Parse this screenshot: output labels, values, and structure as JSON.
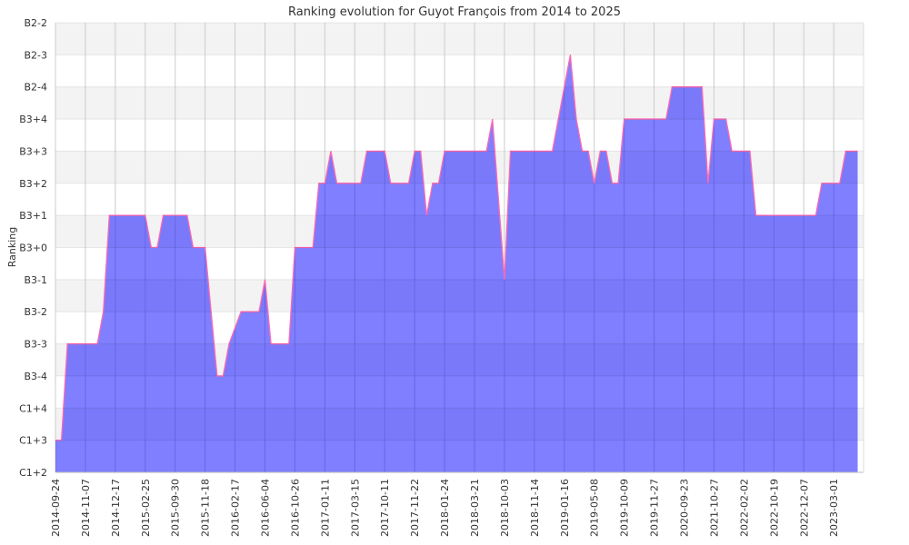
{
  "chart_data": {
    "type": "area",
    "title": "Ranking evolution for Guyot François from 2014 to 2025",
    "xlabel": "",
    "ylabel": "Ranking",
    "y_categories": [
      "C1+2",
      "C1+3",
      "C1+4",
      "B3-4",
      "B3-3",
      "B3-2",
      "B3-1",
      "B3+0",
      "B3+1",
      "B3+2",
      "B3+3",
      "B3+4",
      "B2-4",
      "B2-3",
      "B2-2"
    ],
    "x_tick_labels": [
      "2014-09-24",
      "2014-11-07",
      "2014-12-17",
      "2015-02-25",
      "2015-09-30",
      "2015-11-18",
      "2016-02-17",
      "2016-06-04",
      "2016-10-26",
      "2017-01-11",
      "2017-03-15",
      "2017-10-11",
      "2017-11-22",
      "2018-01-24",
      "2018-03-21",
      "2018-10-03",
      "2018-11-14",
      "2019-01-16",
      "2019-05-08",
      "2019-10-09",
      "2019-11-27",
      "2020-09-23",
      "2021-10-27",
      "2022-02-02",
      "2022-10-19",
      "2022-12-07",
      "2023-03-01"
    ],
    "points_per_tick": 5,
    "series": [
      {
        "name": "Ranking",
        "values_level_index": [
          1,
          1,
          4,
          4,
          4,
          4,
          4,
          4,
          5,
          8,
          8,
          8,
          8,
          8,
          8,
          8,
          7,
          7,
          8,
          8,
          8,
          8,
          8,
          7,
          7,
          7,
          5,
          3,
          3,
          4,
          4.5,
          5,
          5,
          5,
          5,
          6,
          4,
          4,
          4,
          4,
          7,
          7,
          7,
          7,
          9,
          9,
          10,
          9,
          9,
          9,
          9,
          9,
          10,
          10,
          10,
          10,
          9,
          9,
          9,
          9,
          10,
          10,
          8,
          9,
          9,
          10,
          10,
          10,
          10,
          10,
          10,
          10,
          10,
          11,
          8.5,
          6,
          10,
          10,
          10,
          10,
          10,
          10,
          10,
          10,
          11,
          12,
          13,
          11,
          10,
          10,
          9,
          10,
          10,
          9,
          9,
          11,
          11,
          11,
          11,
          11,
          11,
          11,
          11,
          12,
          12,
          12,
          12,
          12,
          12,
          9,
          11,
          11,
          11,
          10,
          10,
          10,
          10,
          8,
          8,
          8,
          8,
          8,
          8,
          8,
          8,
          8,
          8,
          8,
          9,
          9,
          9,
          9,
          10,
          10,
          10
        ]
      }
    ],
    "grid": true,
    "legend": "none",
    "colors": {
      "fill": "#0000ff",
      "line": "#ff69b4",
      "band": "#f3f3f3",
      "grid": "#cccccc"
    }
  }
}
